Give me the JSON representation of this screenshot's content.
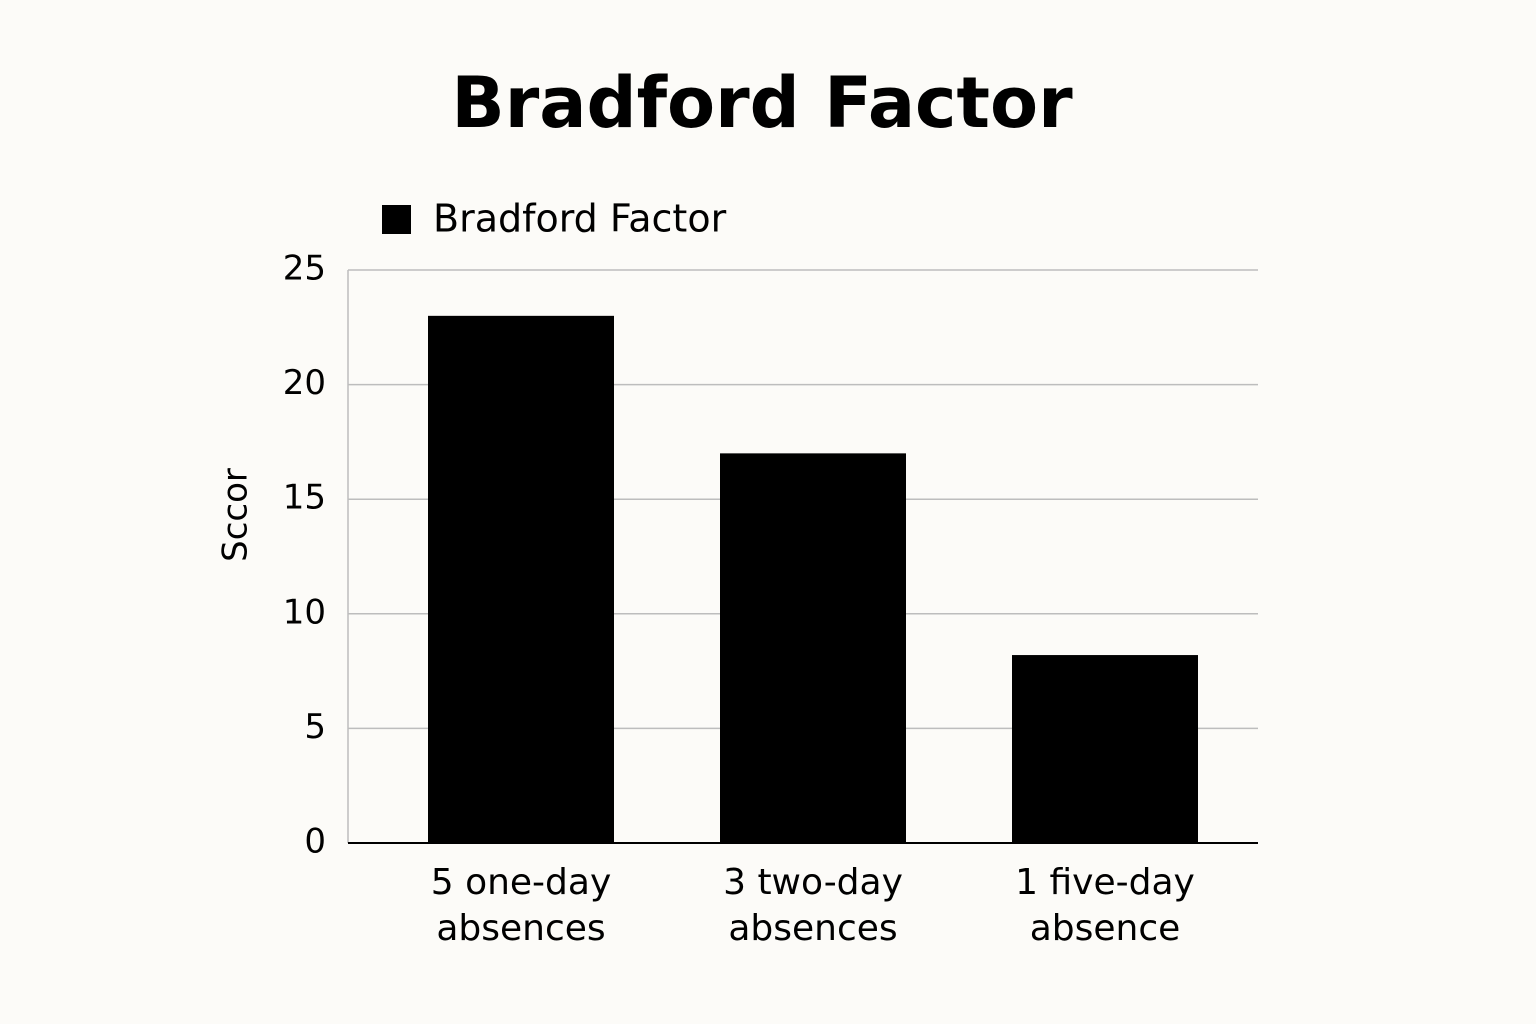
{
  "chart_data": {
    "type": "bar",
    "title": "Bradford Factor",
    "legend": "Bradford Factor",
    "ylabel": "Sccor",
    "categories": [
      "5 one-day absences",
      "3 two-day absences",
      "1 five-day absence"
    ],
    "values": [
      23,
      17,
      8.2
    ],
    "color": "#000000",
    "ylim": [
      0,
      25
    ],
    "yticks": [
      0,
      5,
      10,
      15,
      20,
      25
    ],
    "grid": true
  }
}
